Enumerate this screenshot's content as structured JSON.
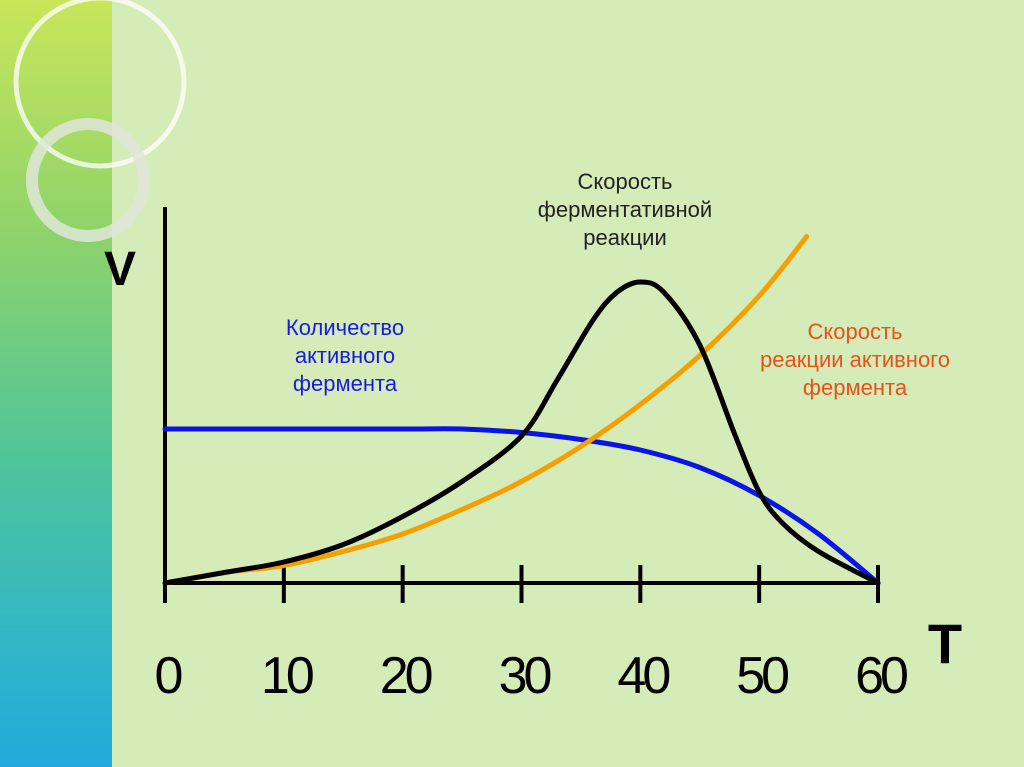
{
  "chart_data": {
    "type": "line",
    "xlabel": "T",
    "ylabel": "V",
    "x_ticks": [
      "0",
      "10",
      "20",
      "30",
      "40",
      "50",
      "60"
    ],
    "xlim": [
      0,
      60
    ],
    "ylim": [
      0,
      1
    ],
    "grid": false,
    "series": [
      {
        "name": "Количество активного фермента",
        "color": "#0a14e6",
        "x": [
          0,
          10,
          20,
          25,
          30,
          35,
          40,
          45,
          50,
          55,
          60
        ],
        "y": [
          0.44,
          0.44,
          0.44,
          0.44,
          0.43,
          0.41,
          0.38,
          0.33,
          0.25,
          0.14,
          0.0
        ]
      },
      {
        "name": "Скорость реакции активного фермента",
        "color": "#f5a000",
        "x": [
          0,
          5,
          10,
          15,
          20,
          25,
          30,
          35,
          40,
          45,
          50,
          54
        ],
        "y": [
          0.0,
          0.03,
          0.05,
          0.09,
          0.14,
          0.21,
          0.29,
          0.39,
          0.51,
          0.65,
          0.82,
          0.99
        ]
      },
      {
        "name": "Скорость ферментативной реакции",
        "color": "#000000",
        "x": [
          0,
          5,
          10,
          15,
          20,
          25,
          30,
          33,
          36,
          38,
          40,
          42,
          45,
          48,
          50,
          52,
          55,
          60
        ],
        "y": [
          0.0,
          0.03,
          0.06,
          0.11,
          0.19,
          0.29,
          0.42,
          0.58,
          0.75,
          0.83,
          0.86,
          0.83,
          0.68,
          0.42,
          0.26,
          0.17,
          0.09,
          0.0
        ]
      }
    ],
    "annotations": {
      "reaction_speed": [
        "Скорость",
        "ферментативной",
        "реакции"
      ],
      "active_enzyme": [
        "Количество",
        "активного",
        "фермента"
      ],
      "active_enzyme_speed": [
        "Скорость",
        "реакции активного",
        "фермента"
      ]
    }
  }
}
